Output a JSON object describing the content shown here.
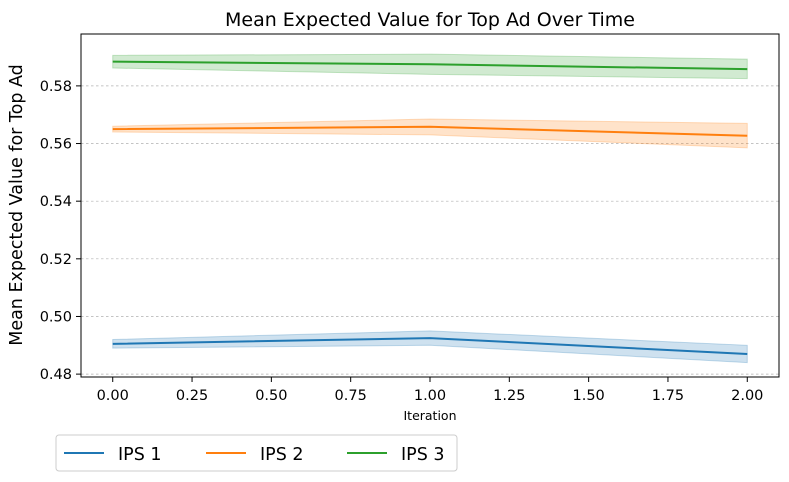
{
  "chart_data": {
    "type": "line",
    "title": "Mean Expected Value for Top Ad Over Time",
    "xlabel": "Iteration",
    "ylabel": "Mean Expected Value for Top Ad",
    "xlim": [
      -0.1,
      2.1
    ],
    "ylim": [
      0.479,
      0.598
    ],
    "xticks": [
      0.0,
      0.25,
      0.5,
      0.75,
      1.0,
      1.25,
      1.5,
      1.75,
      2.0
    ],
    "xtick_labels": [
      "0.00",
      "0.25",
      "0.50",
      "0.75",
      "1.00",
      "1.25",
      "1.50",
      "1.75",
      "2.00"
    ],
    "yticks": [
      0.48,
      0.5,
      0.52,
      0.54,
      0.56,
      0.58
    ],
    "ytick_labels": [
      "0.48",
      "0.50",
      "0.52",
      "0.54",
      "0.56",
      "0.58"
    ],
    "grid": "y-dashed",
    "legend_position": "below",
    "x": [
      0,
      1,
      2
    ],
    "series": [
      {
        "name": "IPS 1",
        "color": "#1f77b4",
        "values": [
          0.4905,
          0.4925,
          0.487
        ],
        "lower": [
          0.489,
          0.49,
          0.484
        ],
        "upper": [
          0.492,
          0.495,
          0.49
        ]
      },
      {
        "name": "IPS 2",
        "color": "#ff7f0e",
        "values": [
          0.565,
          0.5658,
          0.5627
        ],
        "lower": [
          0.564,
          0.563,
          0.5585
        ],
        "upper": [
          0.566,
          0.5685,
          0.567
        ]
      },
      {
        "name": "IPS 3",
        "color": "#2ca02c",
        "values": [
          0.5884,
          0.5875,
          0.5858
        ],
        "lower": [
          0.5862,
          0.584,
          0.5825
        ],
        "upper": [
          0.5906,
          0.591,
          0.5893
        ]
      }
    ]
  }
}
